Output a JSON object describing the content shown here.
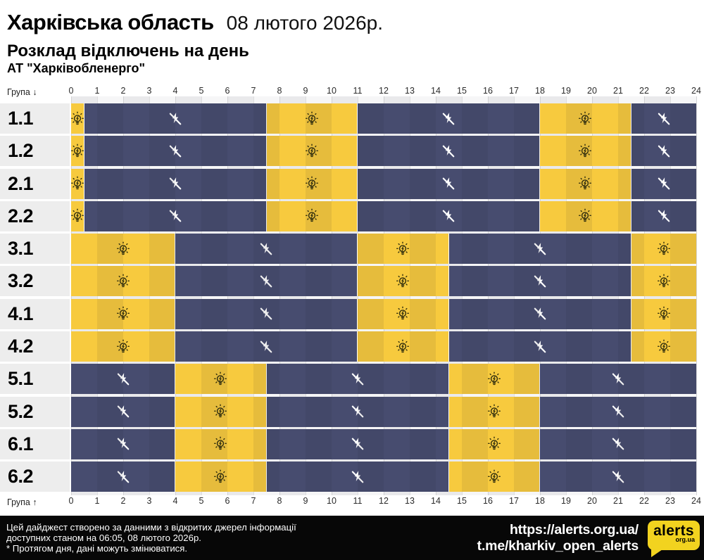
{
  "header": {
    "region": "Харківська область",
    "date": "08 лютого 2026р.",
    "subtitle": "Розклад відключень на день",
    "operator": "АТ \"Харківобленерго\""
  },
  "axis": {
    "top_caption": "Група ↓",
    "bottom_caption": "Група ↑",
    "tick_labels": [
      "0",
      "1",
      "2",
      "3",
      "4",
      "5",
      "6",
      "7",
      "8",
      "9",
      "10",
      "11",
      "12",
      "13",
      "14",
      "15",
      "16",
      "17",
      "18",
      "19",
      "20",
      "21",
      "22",
      "23",
      "24"
    ]
  },
  "icons": {
    "on": "bulb-icon",
    "off": "power-off-icon"
  },
  "colors": {
    "power_on": "#F7CA3E",
    "power_off": "#474C6F",
    "stripe_a": "#e9e9eb",
    "stripe_b": "#f6f6f7",
    "label_band": "#ededed",
    "footer_bg": "#070707",
    "logo_yellow": "#F2D31F",
    "icon_dark": "#33300e"
  },
  "chart_data": {
    "type": "schedule-timeline",
    "title": "Розклад відключень на день",
    "x_range": [
      0,
      24
    ],
    "x_ticks": [
      0,
      1,
      2,
      3,
      4,
      5,
      6,
      7,
      8,
      9,
      10,
      11,
      12,
      13,
      14,
      15,
      16,
      17,
      18,
      19,
      20,
      21,
      22,
      23,
      24
    ],
    "states": [
      "on",
      "off"
    ],
    "groups": [
      {
        "name": "1.1",
        "segments": [
          {
            "state": "on",
            "from": 0,
            "to": 0.5
          },
          {
            "state": "off",
            "from": 0.5,
            "to": 7.5
          },
          {
            "state": "on",
            "from": 7.5,
            "to": 11
          },
          {
            "state": "off",
            "from": 11,
            "to": 18
          },
          {
            "state": "on",
            "from": 18,
            "to": 21.5
          },
          {
            "state": "off",
            "from": 21.5,
            "to": 24
          }
        ]
      },
      {
        "name": "1.2",
        "segments": [
          {
            "state": "on",
            "from": 0,
            "to": 0.5
          },
          {
            "state": "off",
            "from": 0.5,
            "to": 7.5
          },
          {
            "state": "on",
            "from": 7.5,
            "to": 11
          },
          {
            "state": "off",
            "from": 11,
            "to": 18
          },
          {
            "state": "on",
            "from": 18,
            "to": 21.5
          },
          {
            "state": "off",
            "from": 21.5,
            "to": 24
          }
        ]
      },
      {
        "name": "2.1",
        "segments": [
          {
            "state": "on",
            "from": 0,
            "to": 0.5
          },
          {
            "state": "off",
            "from": 0.5,
            "to": 7.5
          },
          {
            "state": "on",
            "from": 7.5,
            "to": 11
          },
          {
            "state": "off",
            "from": 11,
            "to": 18
          },
          {
            "state": "on",
            "from": 18,
            "to": 21.5
          },
          {
            "state": "off",
            "from": 21.5,
            "to": 24
          }
        ]
      },
      {
        "name": "2.2",
        "segments": [
          {
            "state": "on",
            "from": 0,
            "to": 0.5
          },
          {
            "state": "off",
            "from": 0.5,
            "to": 7.5
          },
          {
            "state": "on",
            "from": 7.5,
            "to": 11
          },
          {
            "state": "off",
            "from": 11,
            "to": 18
          },
          {
            "state": "on",
            "from": 18,
            "to": 21.5
          },
          {
            "state": "off",
            "from": 21.5,
            "to": 24
          }
        ]
      },
      {
        "name": "3.1",
        "segments": [
          {
            "state": "on",
            "from": 0,
            "to": 4
          },
          {
            "state": "off",
            "from": 4,
            "to": 11
          },
          {
            "state": "on",
            "from": 11,
            "to": 14.5
          },
          {
            "state": "off",
            "from": 14.5,
            "to": 21.5
          },
          {
            "state": "on",
            "from": 21.5,
            "to": 24
          }
        ]
      },
      {
        "name": "3.2",
        "segments": [
          {
            "state": "on",
            "from": 0,
            "to": 4
          },
          {
            "state": "off",
            "from": 4,
            "to": 11
          },
          {
            "state": "on",
            "from": 11,
            "to": 14.5
          },
          {
            "state": "off",
            "from": 14.5,
            "to": 21.5
          },
          {
            "state": "on",
            "from": 21.5,
            "to": 24
          }
        ]
      },
      {
        "name": "4.1",
        "segments": [
          {
            "state": "on",
            "from": 0,
            "to": 4
          },
          {
            "state": "off",
            "from": 4,
            "to": 11
          },
          {
            "state": "on",
            "from": 11,
            "to": 14.5
          },
          {
            "state": "off",
            "from": 14.5,
            "to": 21.5
          },
          {
            "state": "on",
            "from": 21.5,
            "to": 24
          }
        ]
      },
      {
        "name": "4.2",
        "segments": [
          {
            "state": "on",
            "from": 0,
            "to": 4
          },
          {
            "state": "off",
            "from": 4,
            "to": 11
          },
          {
            "state": "on",
            "from": 11,
            "to": 14.5
          },
          {
            "state": "off",
            "from": 14.5,
            "to": 21.5
          },
          {
            "state": "on",
            "from": 21.5,
            "to": 24
          }
        ]
      },
      {
        "name": "5.1",
        "segments": [
          {
            "state": "off",
            "from": 0,
            "to": 4
          },
          {
            "state": "on",
            "from": 4,
            "to": 7.5
          },
          {
            "state": "off",
            "from": 7.5,
            "to": 14.5
          },
          {
            "state": "on",
            "from": 14.5,
            "to": 18
          },
          {
            "state": "off",
            "from": 18,
            "to": 24
          }
        ]
      },
      {
        "name": "5.2",
        "segments": [
          {
            "state": "off",
            "from": 0,
            "to": 4
          },
          {
            "state": "on",
            "from": 4,
            "to": 7.5
          },
          {
            "state": "off",
            "from": 7.5,
            "to": 14.5
          },
          {
            "state": "on",
            "from": 14.5,
            "to": 18
          },
          {
            "state": "off",
            "from": 18,
            "to": 24
          }
        ]
      },
      {
        "name": "6.1",
        "segments": [
          {
            "state": "off",
            "from": 0,
            "to": 4
          },
          {
            "state": "on",
            "from": 4,
            "to": 7.5
          },
          {
            "state": "off",
            "from": 7.5,
            "to": 14.5
          },
          {
            "state": "on",
            "from": 14.5,
            "to": 18
          },
          {
            "state": "off",
            "from": 18,
            "to": 24
          }
        ]
      },
      {
        "name": "6.2",
        "segments": [
          {
            "state": "off",
            "from": 0,
            "to": 4
          },
          {
            "state": "on",
            "from": 4,
            "to": 7.5
          },
          {
            "state": "off",
            "from": 7.5,
            "to": 14.5
          },
          {
            "state": "on",
            "from": 14.5,
            "to": 18
          },
          {
            "state": "off",
            "from": 18,
            "to": 24
          }
        ]
      }
    ]
  },
  "footer": {
    "lines": [
      "Цей дайджест створено за данними з відкритих джерел інформації",
      "доступних станом на 06:05, 08 лютого 2026р.",
      "* Протягом дня, дані можуть змінюватися."
    ],
    "links": [
      {
        "text": "https://alerts.org.ua/"
      },
      {
        "text": "t.me/kharkiv_open_alerts"
      }
    ],
    "logo": {
      "text": "alerts",
      "sub": "org.ua"
    }
  }
}
